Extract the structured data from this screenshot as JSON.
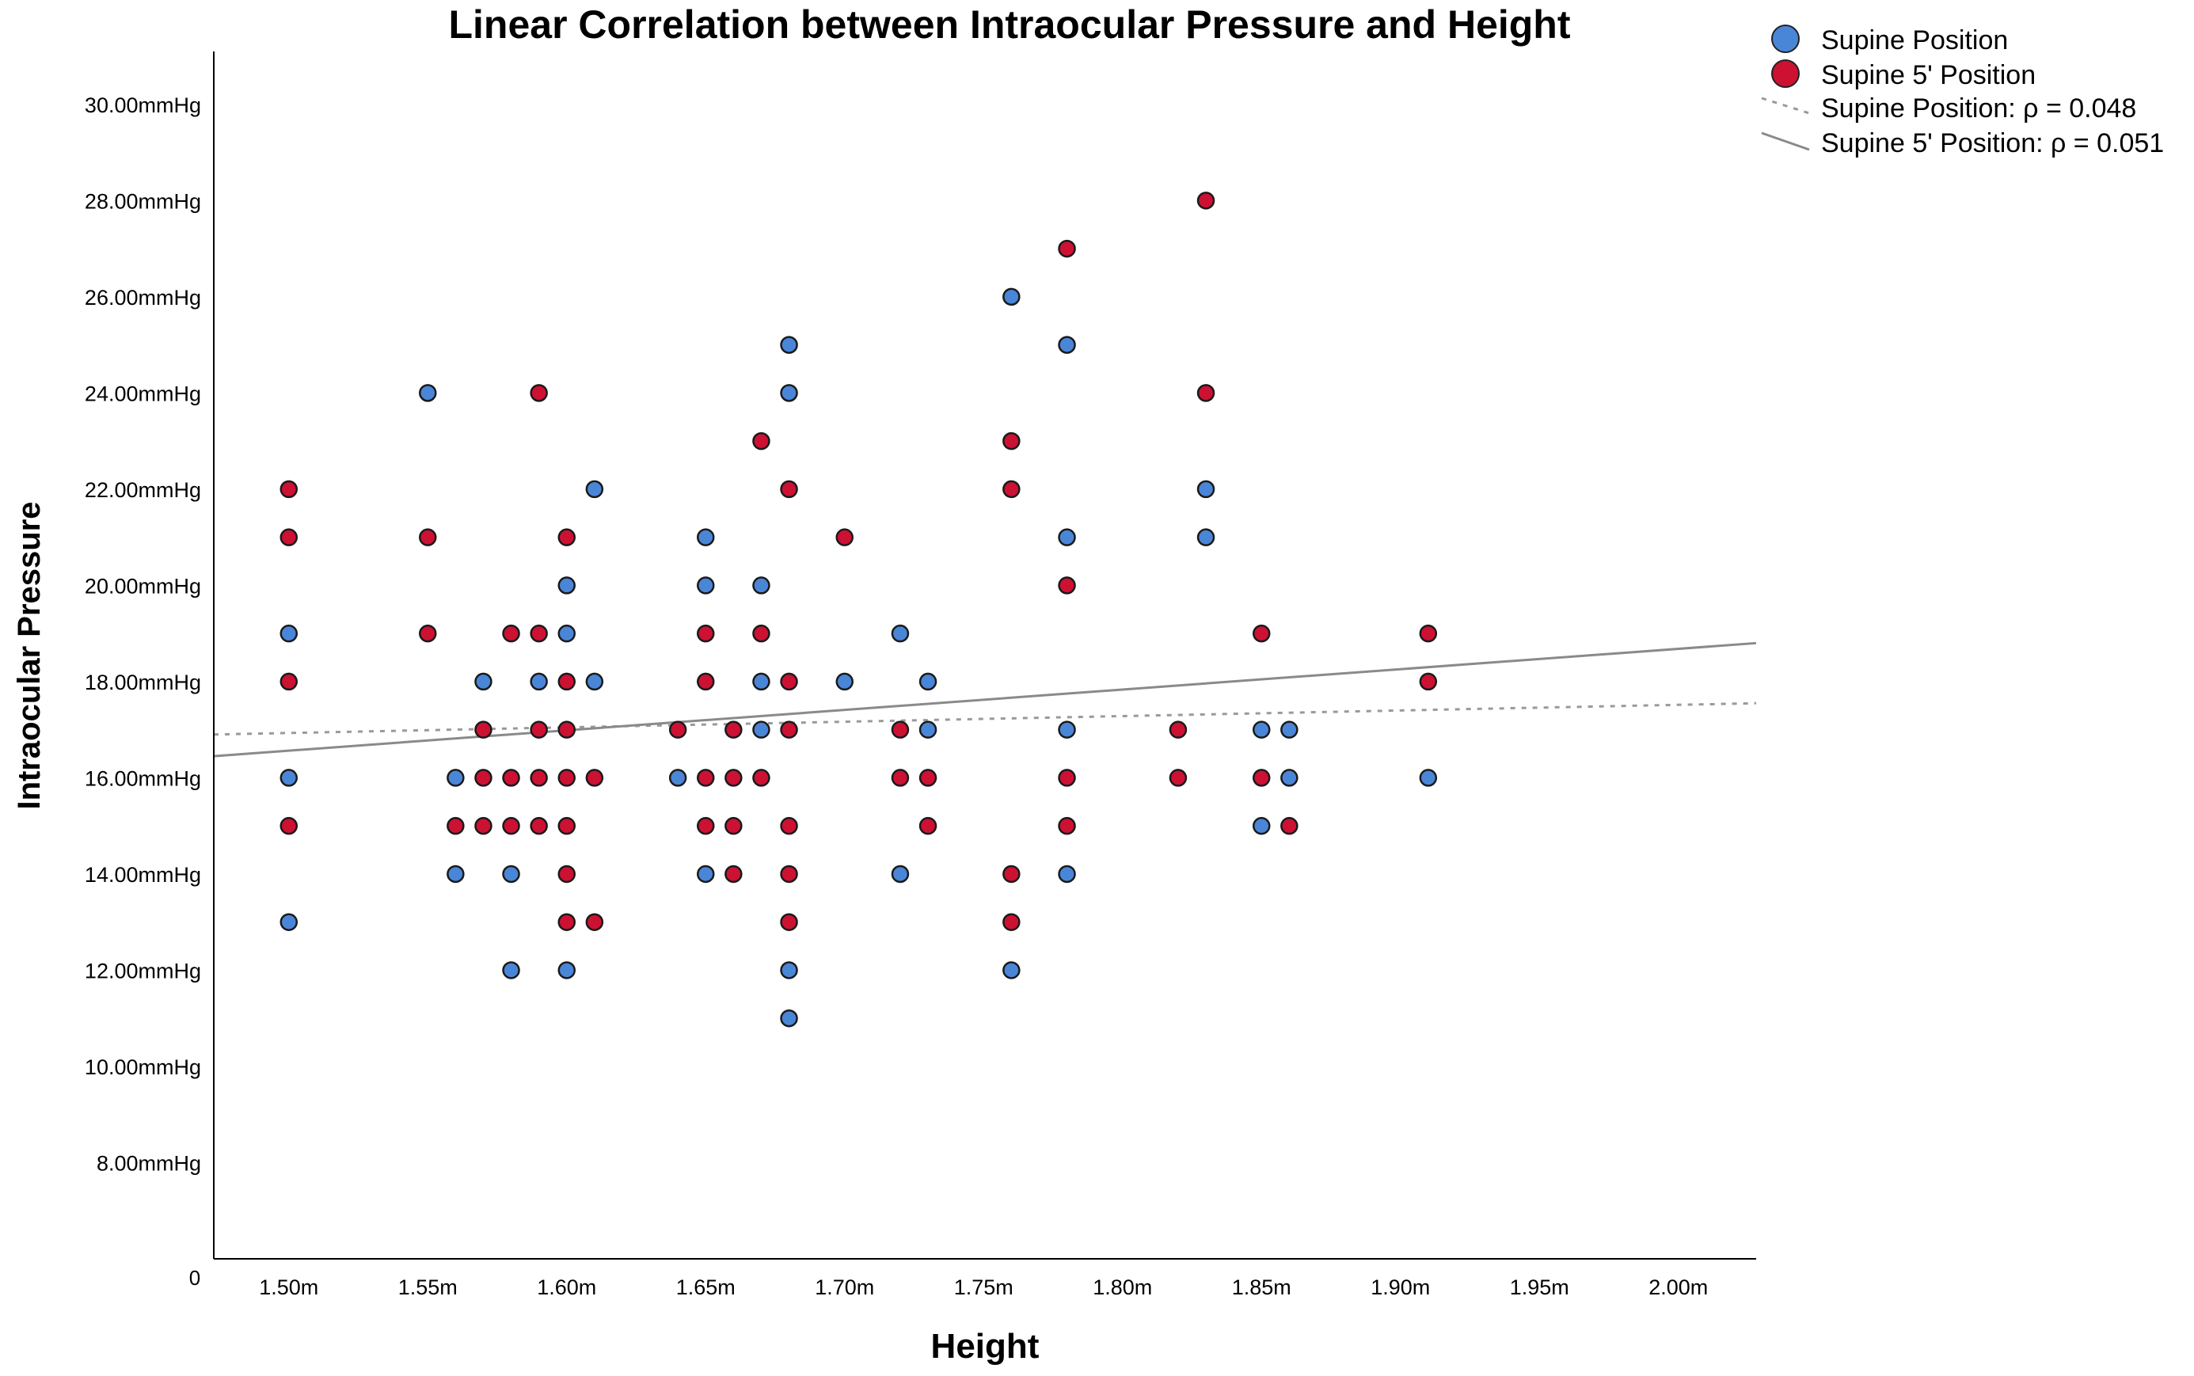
{
  "chart_data": {
    "type": "scatter",
    "title": "Linear Correlation between Intraocular Pressure and Height",
    "xlabel": "Height",
    "ylabel": "Intraocular Pressure",
    "xlim": [
      1.473,
      2.028
    ],
    "ylim": [
      6.0,
      31.1
    ],
    "x_ticks": [
      {
        "value": 1.5,
        "label": "1.50m"
      },
      {
        "value": 1.55,
        "label": "1.55m"
      },
      {
        "value": 1.6,
        "label": "1.60m"
      },
      {
        "value": 1.65,
        "label": "1.65m"
      },
      {
        "value": 1.7,
        "label": "1.70m"
      },
      {
        "value": 1.75,
        "label": "1.75m"
      },
      {
        "value": 1.8,
        "label": "1.80m"
      },
      {
        "value": 1.85,
        "label": "1.85m"
      },
      {
        "value": 1.9,
        "label": "1.90m"
      },
      {
        "value": 1.95,
        "label": "1.95m"
      },
      {
        "value": 2.0,
        "label": "2.00m"
      }
    ],
    "y_ticks": [
      {
        "value": 8,
        "label": "8.00mmHg"
      },
      {
        "value": 10,
        "label": "10.00mmHg"
      },
      {
        "value": 12,
        "label": "12.00mmHg"
      },
      {
        "value": 14,
        "label": "14.00mmHg"
      },
      {
        "value": 16,
        "label": "16.00mmHg"
      },
      {
        "value": 18,
        "label": "18.00mmHg"
      },
      {
        "value": 20,
        "label": "20.00mmHg"
      },
      {
        "value": 22,
        "label": "22.00mmHg"
      },
      {
        "value": 24,
        "label": "24.00mmHg"
      },
      {
        "value": 26,
        "label": "26.00mmHg"
      },
      {
        "value": 28,
        "label": "28.00mmHg"
      },
      {
        "value": 30,
        "label": "30.00mmHg"
      }
    ],
    "origin_label": "0",
    "grid": false,
    "legend_position": "top-right",
    "series": [
      {
        "name": "Supine Position",
        "color": "#4a86d8",
        "points": [
          [
            1.5,
            19
          ],
          [
            1.5,
            16
          ],
          [
            1.5,
            13
          ],
          [
            1.55,
            24
          ],
          [
            1.56,
            16
          ],
          [
            1.56,
            14
          ],
          [
            1.57,
            18
          ],
          [
            1.58,
            14
          ],
          [
            1.58,
            12
          ],
          [
            1.59,
            18
          ],
          [
            1.6,
            20
          ],
          [
            1.6,
            19
          ],
          [
            1.6,
            12
          ],
          [
            1.61,
            22
          ],
          [
            1.61,
            18
          ],
          [
            1.64,
            16
          ],
          [
            1.65,
            21
          ],
          [
            1.65,
            20
          ],
          [
            1.65,
            14
          ],
          [
            1.67,
            20
          ],
          [
            1.67,
            18
          ],
          [
            1.67,
            17
          ],
          [
            1.68,
            25
          ],
          [
            1.68,
            24
          ],
          [
            1.68,
            12
          ],
          [
            1.68,
            11
          ],
          [
            1.7,
            18
          ],
          [
            1.72,
            19
          ],
          [
            1.72,
            14
          ],
          [
            1.73,
            18
          ],
          [
            1.73,
            17
          ],
          [
            1.76,
            26
          ],
          [
            1.76,
            12
          ],
          [
            1.78,
            25
          ],
          [
            1.78,
            21
          ],
          [
            1.78,
            17
          ],
          [
            1.78,
            14
          ],
          [
            1.83,
            22
          ],
          [
            1.83,
            21
          ],
          [
            1.85,
            17
          ],
          [
            1.85,
            15
          ],
          [
            1.86,
            17
          ],
          [
            1.86,
            16
          ],
          [
            1.91,
            16
          ]
        ]
      },
      {
        "name": "Supine 5' Position",
        "color": "#cc1133",
        "points": [
          [
            1.5,
            22
          ],
          [
            1.5,
            21
          ],
          [
            1.5,
            18
          ],
          [
            1.5,
            15
          ],
          [
            1.55,
            21
          ],
          [
            1.55,
            19
          ],
          [
            1.56,
            15
          ],
          [
            1.57,
            17
          ],
          [
            1.57,
            16
          ],
          [
            1.57,
            15
          ],
          [
            1.58,
            19
          ],
          [
            1.58,
            16
          ],
          [
            1.58,
            15
          ],
          [
            1.59,
            24
          ],
          [
            1.59,
            19
          ],
          [
            1.59,
            17
          ],
          [
            1.59,
            16
          ],
          [
            1.59,
            15
          ],
          [
            1.6,
            21
          ],
          [
            1.6,
            18
          ],
          [
            1.6,
            17
          ],
          [
            1.6,
            16
          ],
          [
            1.6,
            15
          ],
          [
            1.6,
            14
          ],
          [
            1.6,
            13
          ],
          [
            1.61,
            16
          ],
          [
            1.61,
            13
          ],
          [
            1.64,
            17
          ],
          [
            1.65,
            19
          ],
          [
            1.65,
            18
          ],
          [
            1.65,
            16
          ],
          [
            1.65,
            15
          ],
          [
            1.66,
            17
          ],
          [
            1.66,
            16
          ],
          [
            1.66,
            15
          ],
          [
            1.66,
            14
          ],
          [
            1.67,
            23
          ],
          [
            1.67,
            19
          ],
          [
            1.67,
            16
          ],
          [
            1.68,
            22
          ],
          [
            1.68,
            18
          ],
          [
            1.68,
            17
          ],
          [
            1.68,
            15
          ],
          [
            1.68,
            14
          ],
          [
            1.68,
            13
          ],
          [
            1.7,
            21
          ],
          [
            1.72,
            17
          ],
          [
            1.72,
            16
          ],
          [
            1.73,
            16
          ],
          [
            1.73,
            15
          ],
          [
            1.76,
            23
          ],
          [
            1.76,
            22
          ],
          [
            1.76,
            14
          ],
          [
            1.76,
            13
          ],
          [
            1.78,
            27
          ],
          [
            1.78,
            20
          ],
          [
            1.78,
            16
          ],
          [
            1.78,
            15
          ],
          [
            1.82,
            17
          ],
          [
            1.82,
            16
          ],
          [
            1.83,
            28
          ],
          [
            1.83,
            24
          ],
          [
            1.85,
            19
          ],
          [
            1.85,
            16
          ],
          [
            1.86,
            15
          ],
          [
            1.91,
            19
          ],
          [
            1.91,
            18
          ]
        ]
      }
    ],
    "fit_lines": [
      {
        "name": "Supine Position: ρ = 0.048",
        "style": "dashed",
        "color": "#9a9a9a",
        "x": [
          1.473,
          2.028
        ],
        "y": [
          16.9,
          17.55
        ]
      },
      {
        "name": "Supine 5' Position: ρ = 0.051",
        "style": "solid",
        "color": "#8a8a8a",
        "x": [
          1.473,
          2.028
        ],
        "y": [
          16.45,
          18.8
        ]
      }
    ]
  }
}
